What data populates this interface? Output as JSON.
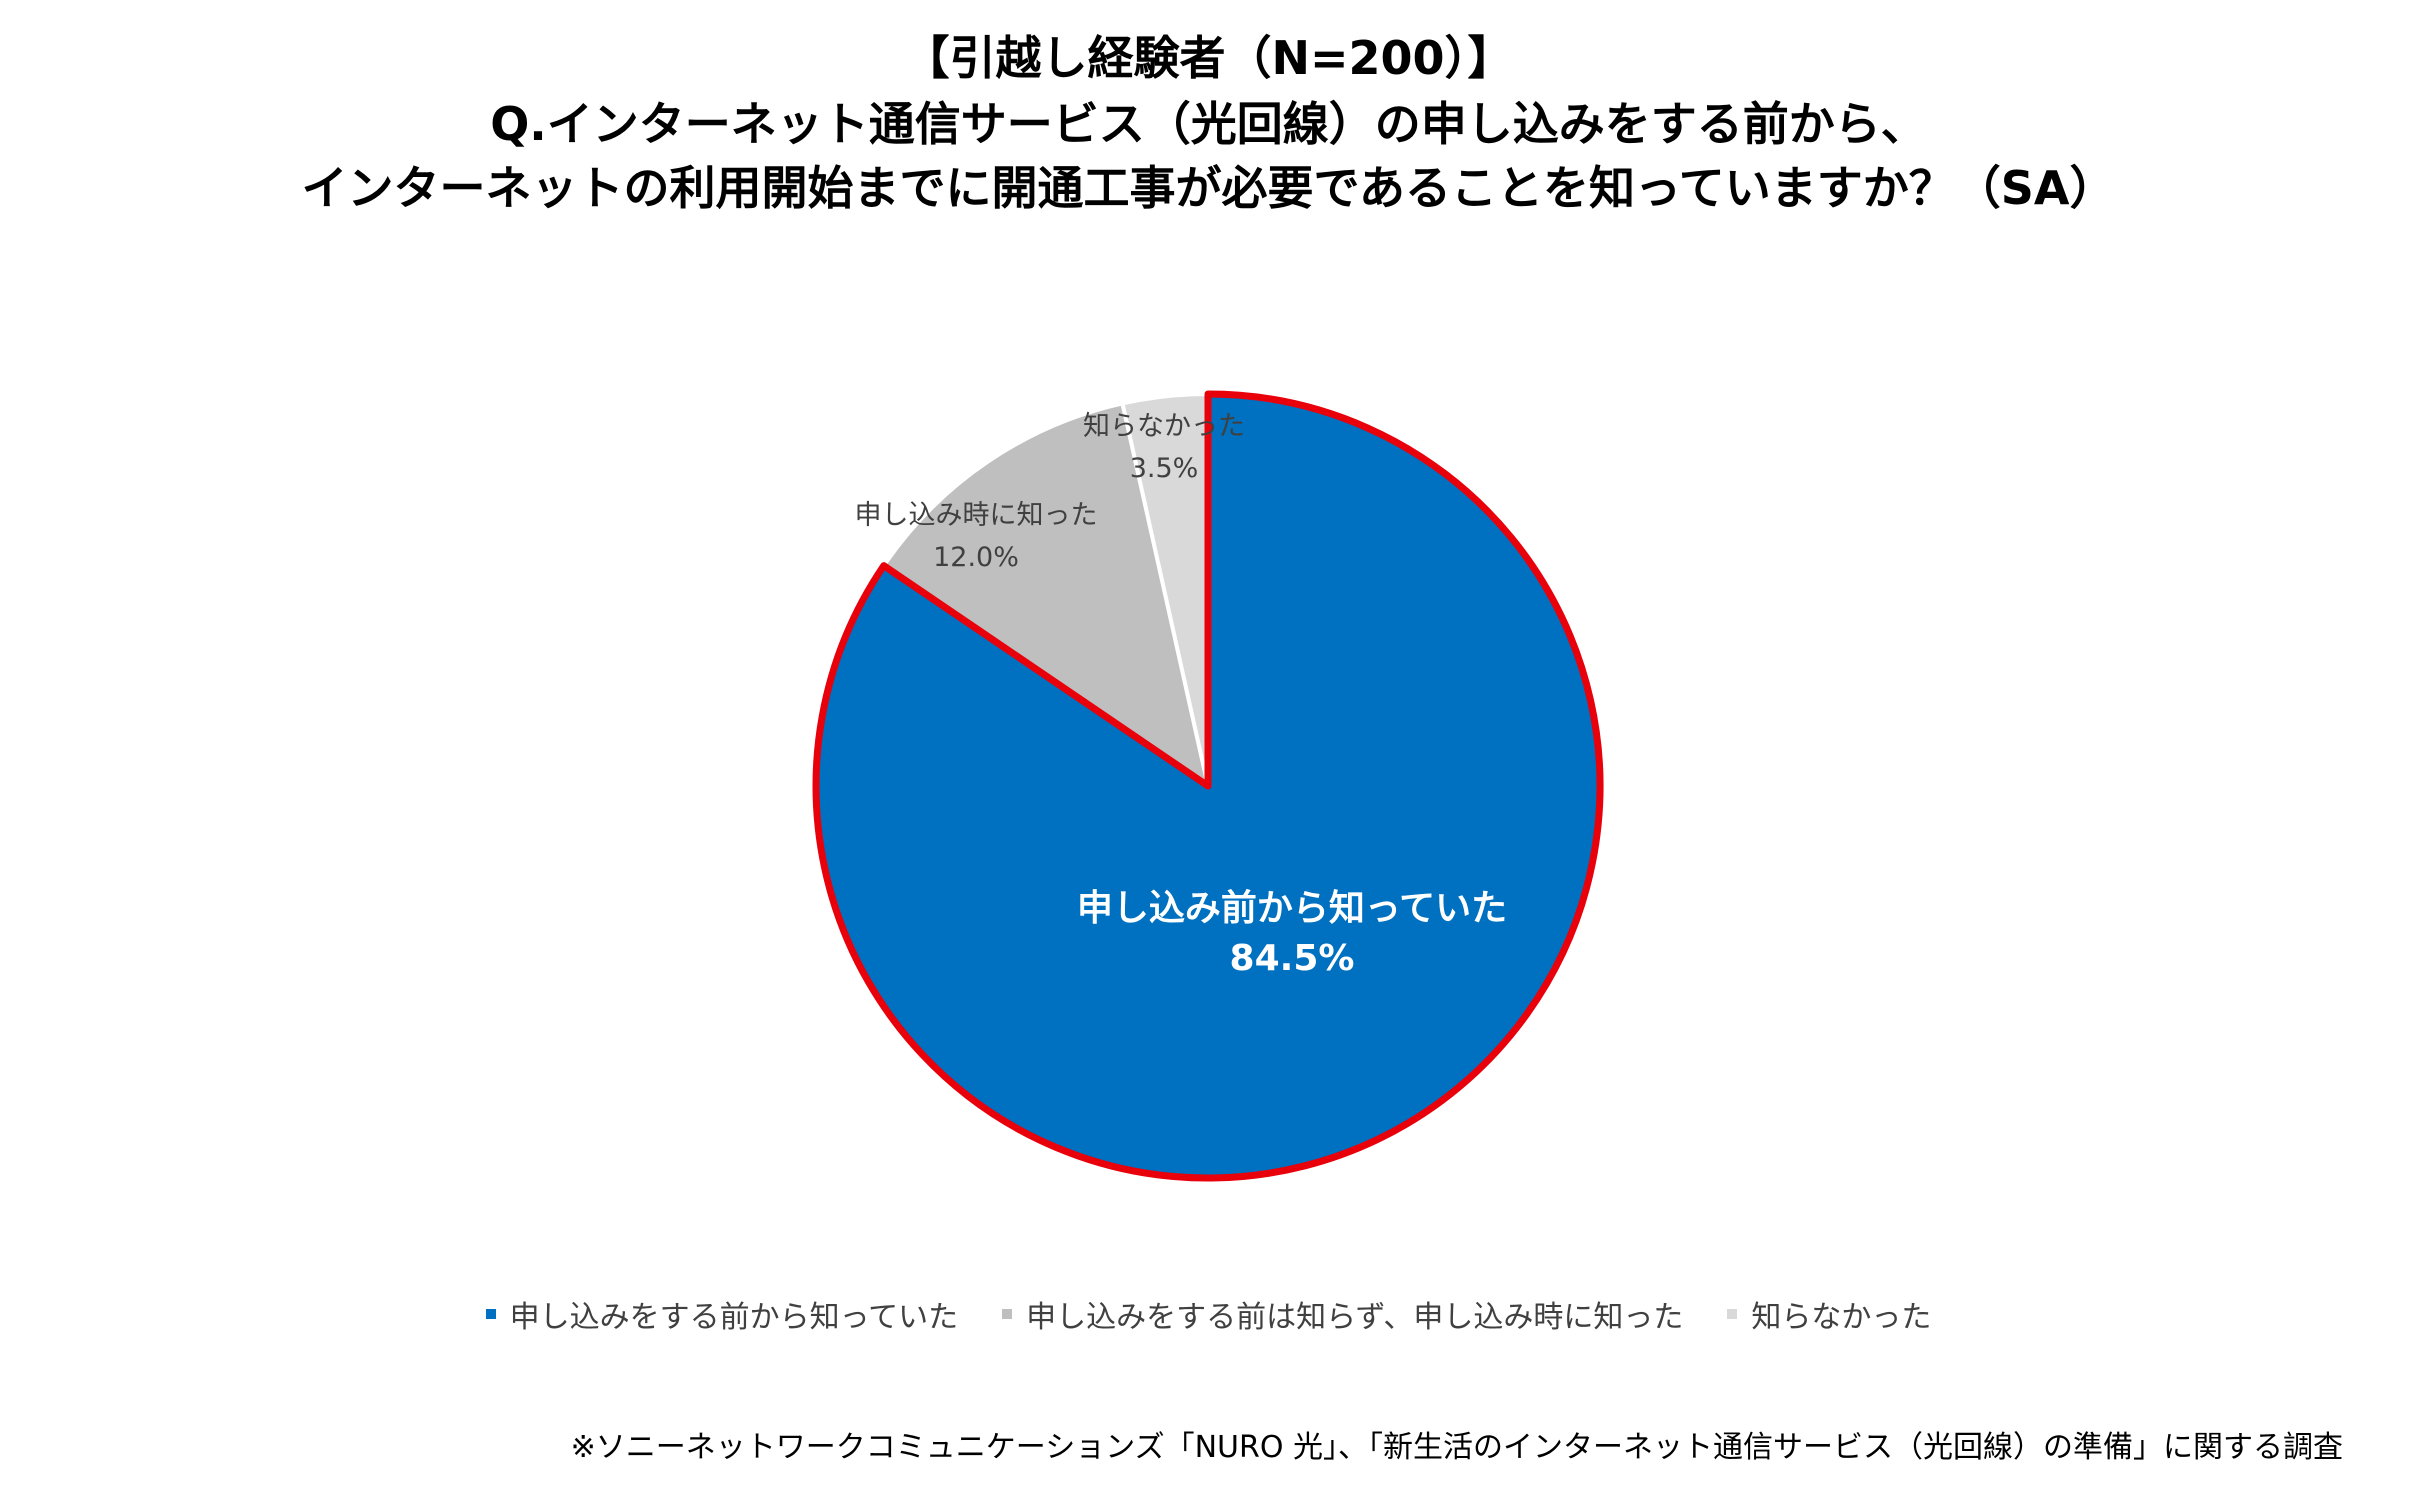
{
  "titles": {
    "line1": "【引越し経験者（N=200）】",
    "line2": "Q.インターネット通信サービス（光回線）の申し込みをする前から、",
    "line3": "インターネットの利用開始までに開通工事が必要であることを知っていますか？（SA）"
  },
  "chart_data": {
    "type": "pie",
    "start_angle": "12 o'clock",
    "direction": "clockwise",
    "slices": [
      {
        "label": "申し込み前から知っていた",
        "value": 84.5,
        "value_label": "84.5%",
        "legend_label": "申し込みをする前から知っていた",
        "color": "#0070C0",
        "highlight_border": "#E8000B",
        "label_color": "#ffffff",
        "label_bold": true
      },
      {
        "label": "申し込み時に知った",
        "value": 12.0,
        "value_label": "12.0%",
        "legend_label": "申し込みをする前は知らず、申し込み時に知った",
        "color": "#BFBFBF",
        "label_color": "#404040",
        "label_bold": false
      },
      {
        "label": "知らなかった",
        "value": 3.5,
        "value_label": "3.5%",
        "legend_label": "知らなかった",
        "color": "#D9D9D9",
        "label_color": "#404040",
        "label_bold": false
      }
    ],
    "legend_position": "bottom"
  },
  "footnote": "※ソニーネットワークコミュニケーションズ「NURO 光」、「新生活のインターネット通信サービス（光回線）の準備」に関する調査"
}
